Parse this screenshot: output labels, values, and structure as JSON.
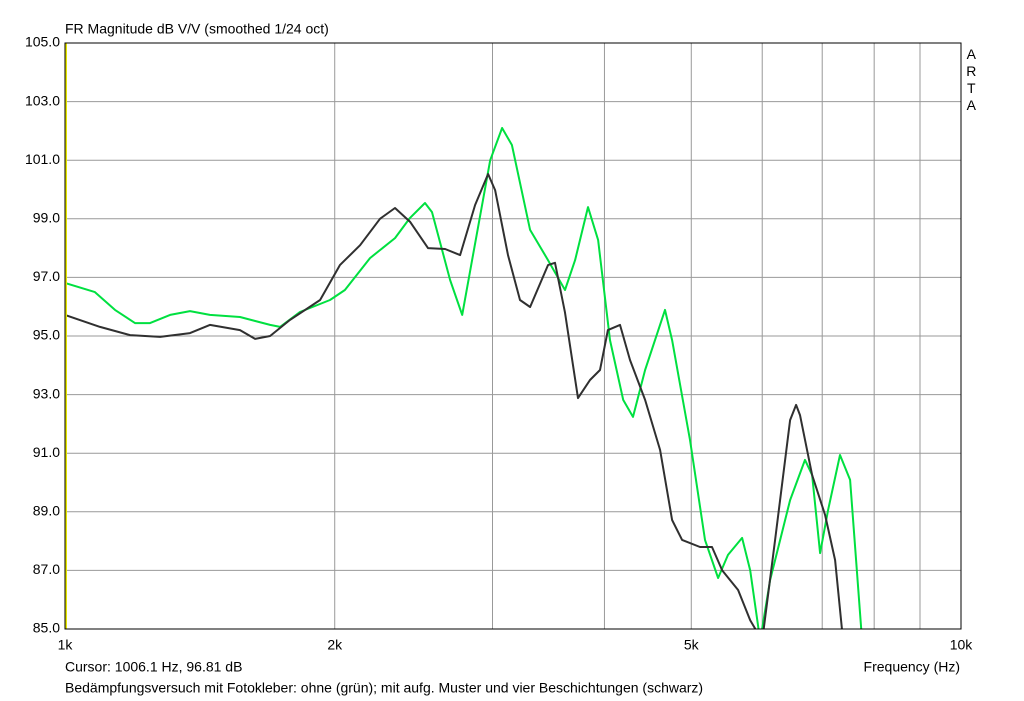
{
  "chart_data": {
    "type": "line",
    "title": "FR Magnitude dB V/V (smoothed 1/24 oct)",
    "logo": "ARTA",
    "cursor": "Cursor: 1006.1 Hz, 96.81 dB",
    "x_label": "Frequency (Hz)",
    "caption": "Bedämpfungsversuch mit Fotokleber: ohne (grün); mit aufg. Muster und vier Beschichtungen (schwarz)",
    "x_scale": "log",
    "grid": true,
    "xlim": [
      1000,
      10000
    ],
    "ylim": [
      85,
      105
    ],
    "xticks": [
      {
        "value": 1000,
        "label": "1k"
      },
      {
        "value": 2000,
        "label": "2k"
      },
      {
        "value": 5000,
        "label": "5k"
      },
      {
        "value": 10000,
        "label": "10k"
      }
    ],
    "x_minor_gridlines": [
      3000,
      4000,
      6000,
      7000,
      8000,
      9000
    ],
    "yticks": [
      {
        "value": 85,
        "label": "85.0"
      },
      {
        "value": 87,
        "label": "87.0"
      },
      {
        "value": 89,
        "label": "89.0"
      },
      {
        "value": 91,
        "label": "91.0"
      },
      {
        "value": 93,
        "label": "93.0"
      },
      {
        "value": 95,
        "label": "95.0"
      },
      {
        "value": 97,
        "label": "97.0"
      },
      {
        "value": 99,
        "label": "99.0"
      },
      {
        "value": 101,
        "label": "101.0"
      },
      {
        "value": 103,
        "label": "103.0"
      },
      {
        "value": 105,
        "label": "105.0"
      }
    ],
    "series": [
      {
        "color": "#00e040",
        "x": [
          1000,
          1080,
          1137,
          1197,
          1244,
          1310,
          1379,
          1451,
          1568,
          1694,
          1738,
          1829,
          1976,
          2053,
          2190,
          2335,
          2427,
          2522,
          2568,
          2690,
          2775,
          2847,
          2982,
          3075,
          3153,
          3304,
          3460,
          3614,
          3709,
          3834,
          3935,
          4058,
          4197,
          4305,
          4440,
          4674,
          4760,
          4984,
          5180,
          5357,
          5495,
          5698,
          5818,
          5969,
          6122,
          6445,
          6698,
          6821,
          6962,
          7107,
          7328,
          7520,
          7755
        ],
        "values": [
          96.81,
          96.5,
          95.89,
          95.44,
          95.44,
          95.72,
          95.85,
          95.72,
          95.65,
          95.38,
          95.31,
          95.82,
          96.23,
          96.57,
          97.66,
          98.34,
          99.03,
          99.54,
          99.23,
          96.91,
          95.72,
          97.59,
          101.0,
          102.1,
          101.52,
          98.62,
          97.59,
          96.57,
          97.59,
          99.4,
          98.28,
          94.86,
          92.82,
          92.24,
          93.84,
          95.89,
          94.86,
          91.45,
          88.04,
          86.74,
          87.53,
          88.11,
          87.0,
          84.6,
          86.67,
          89.4,
          90.77,
          90.26,
          87.59,
          89.06,
          90.94,
          90.09,
          84.6
        ]
      },
      {
        "color": "#303030",
        "x": [
          1000,
          1094,
          1182,
          1277,
          1379,
          1451,
          1568,
          1630,
          1694,
          1783,
          1926,
          2027,
          2135,
          2247,
          2335,
          2427,
          2542,
          2656,
          2760,
          2869,
          2966,
          3020,
          3122,
          3220,
          3304,
          3460,
          3523,
          3614,
          3737,
          3854,
          3955,
          4036,
          4163,
          4272,
          4440,
          4615,
          4760,
          4884,
          5114,
          5274,
          5414,
          5640,
          5818,
          5999,
          6202,
          6445,
          6545,
          6612,
          6821,
          7053,
          7236,
          7387
        ],
        "values": [
          95.72,
          95.31,
          95.03,
          94.97,
          95.1,
          95.38,
          95.2,
          94.9,
          95.0,
          95.55,
          96.23,
          97.42,
          98.1,
          99.0,
          99.37,
          98.9,
          98.0,
          97.97,
          97.76,
          99.47,
          100.53,
          99.98,
          97.76,
          96.23,
          95.99,
          97.42,
          97.5,
          95.8,
          92.88,
          93.5,
          93.84,
          95.2,
          95.38,
          94.18,
          92.82,
          91.11,
          88.72,
          88.04,
          87.8,
          87.8,
          87.0,
          86.33,
          85.3,
          84.6,
          88.04,
          92.13,
          92.65,
          92.3,
          90.26,
          88.89,
          87.35,
          84.6
        ]
      }
    ]
  }
}
